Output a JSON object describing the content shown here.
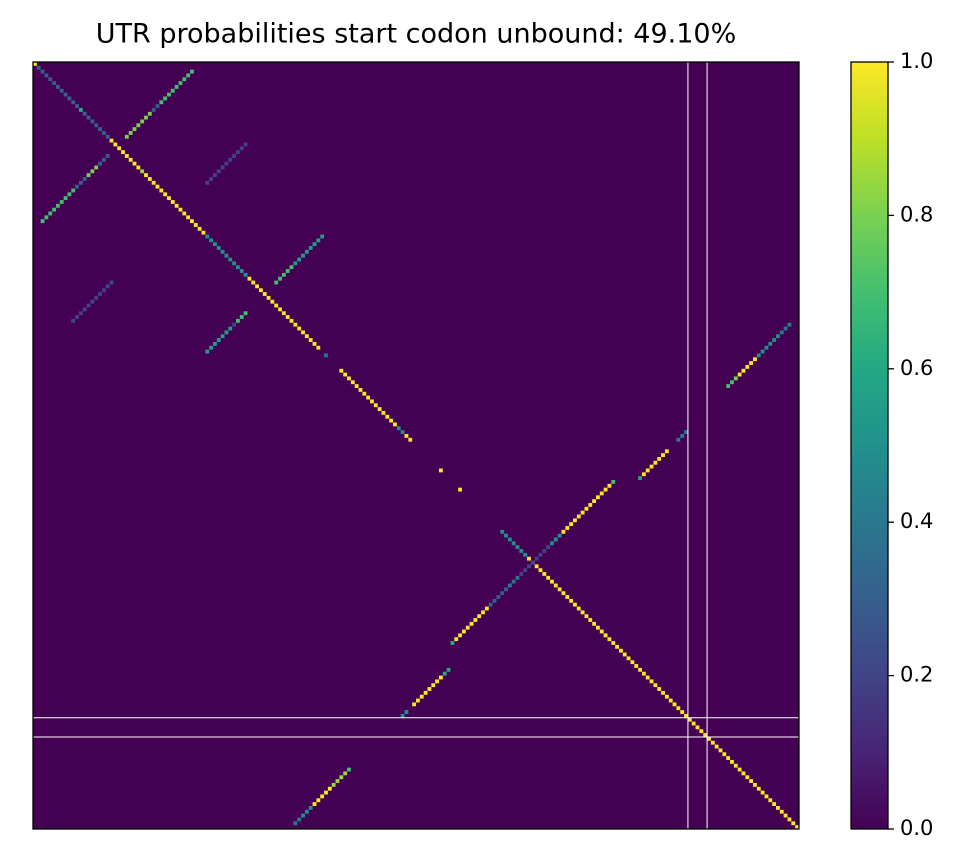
{
  "chart_data": {
    "type": "heatmap",
    "title": "UTR probabilities start codon unbound: 49.10%",
    "colormap": "viridis",
    "clim": [
      0,
      1
    ],
    "cticks": [
      {
        "value": 0,
        "label": "0.0"
      },
      0.2,
      0.4,
      0.6,
      0.8,
      {
        "value": 1,
        "label": "1.0"
      }
    ],
    "xlim": [
      0,
      200
    ],
    "ylim": [
      200,
      0
    ],
    "start_codon": [
      171,
      176
    ],
    "cells": [
      [
        0,
        0,
        1
      ],
      [
        1,
        1,
        0.3
      ],
      [
        2,
        2,
        0.3
      ],
      [
        3,
        3,
        0.3
      ],
      [
        4,
        4,
        0.3
      ],
      [
        5,
        5,
        0.3
      ],
      [
        6,
        6,
        0.3
      ],
      [
        7,
        7,
        0.3
      ],
      [
        8,
        8,
        0.3
      ],
      [
        9,
        9,
        0.3
      ],
      [
        10,
        10,
        0.3
      ],
      [
        11,
        11,
        0.3
      ],
      [
        12,
        12,
        0.6
      ],
      [
        13,
        13,
        0.3
      ],
      [
        14,
        14,
        0.3
      ],
      [
        15,
        15,
        0.3
      ],
      [
        16,
        16,
        0.3
      ],
      [
        17,
        17,
        0.3
      ],
      [
        18,
        18,
        0.3
      ],
      [
        19,
        19,
        0.3
      ],
      [
        20,
        20,
        1
      ],
      [
        21,
        21,
        1
      ],
      [
        22,
        22,
        1
      ],
      [
        23,
        23,
        1
      ],
      [
        24,
        24,
        1
      ],
      [
        25,
        25,
        1
      ],
      [
        26,
        26,
        1
      ],
      [
        27,
        27,
        1
      ],
      [
        28,
        28,
        0.85
      ],
      [
        29,
        29,
        1
      ],
      [
        30,
        30,
        1
      ],
      [
        31,
        31,
        1
      ],
      [
        32,
        32,
        1
      ],
      [
        33,
        33,
        1
      ],
      [
        34,
        34,
        1
      ],
      [
        35,
        35,
        1
      ],
      [
        36,
        36,
        1
      ],
      [
        37,
        37,
        1
      ],
      [
        38,
        38,
        1
      ],
      [
        39,
        39,
        1
      ],
      [
        40,
        40,
        1
      ],
      [
        41,
        41,
        1
      ],
      [
        42,
        42,
        1
      ],
      [
        43,
        43,
        1
      ],
      [
        44,
        44,
        1
      ],
      [
        45,
        45,
        0.5
      ],
      [
        46,
        46,
        0.5
      ],
      [
        47,
        47,
        0.5
      ],
      [
        48,
        48,
        0.5
      ],
      [
        49,
        49,
        0.5
      ],
      [
        50,
        50,
        0.5
      ],
      [
        51,
        51,
        0.5
      ],
      [
        52,
        52,
        0.5
      ],
      [
        53,
        53,
        0.5
      ],
      [
        54,
        54,
        0.5
      ],
      [
        55,
        55,
        0.5
      ],
      [
        56,
        56,
        1
      ],
      [
        57,
        57,
        1
      ],
      [
        58,
        58,
        1
      ],
      [
        59,
        59,
        1
      ],
      [
        60,
        60,
        1
      ],
      [
        61,
        61,
        1
      ],
      [
        62,
        62,
        1
      ],
      [
        63,
        63,
        1
      ],
      [
        64,
        64,
        1
      ],
      [
        65,
        65,
        1
      ],
      [
        66,
        66,
        1
      ],
      [
        67,
        67,
        1
      ],
      [
        68,
        68,
        1
      ],
      [
        69,
        69,
        1
      ],
      [
        70,
        70,
        1
      ],
      [
        71,
        71,
        1
      ],
      [
        72,
        72,
        1
      ],
      [
        73,
        73,
        1
      ],
      [
        74,
        74,
        1
      ],
      [
        76,
        76,
        0.4
      ],
      [
        80,
        80,
        1
      ],
      [
        81,
        81,
        1
      ],
      [
        82,
        82,
        1
      ],
      [
        83,
        83,
        1
      ],
      [
        84,
        84,
        1
      ],
      [
        85,
        85,
        1
      ],
      [
        86,
        86,
        1
      ],
      [
        87,
        87,
        1
      ],
      [
        88,
        88,
        1
      ],
      [
        89,
        89,
        1
      ],
      [
        90,
        90,
        1
      ],
      [
        91,
        91,
        1
      ],
      [
        92,
        92,
        1
      ],
      [
        93,
        93,
        1
      ],
      [
        94,
        94,
        1
      ],
      [
        95,
        95,
        0.5
      ],
      [
        96,
        96,
        0.5
      ],
      [
        97,
        97,
        1
      ],
      [
        98,
        98,
        1
      ],
      [
        106,
        106,
        1
      ],
      [
        111,
        111,
        1
      ],
      [
        122,
        122,
        0.5
      ],
      [
        123,
        123,
        0.5
      ],
      [
        124,
        124,
        0.5
      ],
      [
        125,
        125,
        0.5
      ],
      [
        126,
        126,
        0.5
      ],
      [
        127,
        127,
        0.5
      ],
      [
        128,
        128,
        0.5
      ],
      [
        129,
        129,
        1
      ],
      [
        130,
        130,
        1
      ],
      [
        131,
        131,
        1
      ],
      [
        132,
        132,
        1
      ],
      [
        133,
        133,
        1
      ],
      [
        134,
        134,
        1
      ],
      [
        135,
        135,
        1
      ],
      [
        136,
        136,
        1
      ],
      [
        137,
        137,
        1
      ],
      [
        138,
        138,
        1
      ],
      [
        139,
        139,
        1
      ],
      [
        140,
        140,
        1
      ],
      [
        141,
        141,
        1
      ],
      [
        142,
        142,
        1
      ],
      [
        143,
        143,
        1
      ],
      [
        144,
        144,
        1
      ],
      [
        145,
        145,
        1
      ],
      [
        146,
        146,
        1
      ],
      [
        147,
        147,
        1
      ],
      [
        148,
        148,
        1
      ],
      [
        149,
        149,
        1
      ],
      [
        150,
        150,
        1
      ],
      [
        151,
        151,
        1
      ],
      [
        152,
        152,
        1
      ],
      [
        153,
        153,
        1
      ],
      [
        154,
        154,
        1
      ],
      [
        155,
        155,
        1
      ],
      [
        156,
        156,
        1
      ],
      [
        157,
        157,
        1
      ],
      [
        158,
        158,
        1
      ],
      [
        159,
        159,
        1
      ],
      [
        160,
        160,
        1
      ],
      [
        161,
        161,
        1
      ],
      [
        162,
        162,
        1
      ],
      [
        163,
        163,
        1
      ],
      [
        164,
        164,
        1
      ],
      [
        165,
        165,
        1
      ],
      [
        166,
        166,
        1
      ],
      [
        167,
        167,
        1
      ],
      [
        168,
        168,
        1
      ],
      [
        169,
        169,
        1
      ],
      [
        170,
        170,
        1
      ],
      [
        171,
        171,
        1
      ],
      [
        172,
        172,
        1
      ],
      [
        173,
        173,
        1
      ],
      [
        174,
        174,
        1
      ],
      [
        175,
        175,
        1
      ],
      [
        176,
        176,
        1
      ],
      [
        177,
        177,
        1
      ],
      [
        178,
        178,
        1
      ],
      [
        179,
        179,
        1
      ],
      [
        180,
        180,
        1
      ],
      [
        181,
        181,
        1
      ],
      [
        182,
        182,
        1
      ],
      [
        183,
        183,
        1
      ],
      [
        184,
        184,
        1
      ],
      [
        185,
        185,
        1
      ],
      [
        186,
        186,
        1
      ],
      [
        187,
        187,
        1
      ],
      [
        188,
        188,
        1
      ],
      [
        189,
        189,
        1
      ],
      [
        190,
        190,
        1
      ],
      [
        191,
        191,
        1
      ],
      [
        192,
        192,
        1
      ],
      [
        193,
        193,
        1
      ],
      [
        194,
        194,
        1
      ],
      [
        195,
        195,
        1
      ],
      [
        196,
        196,
        1
      ],
      [
        197,
        197,
        1
      ],
      [
        198,
        198,
        1
      ],
      [
        199,
        199,
        1
      ],
      [
        41,
        2,
        0.7
      ],
      [
        40,
        3,
        0.7
      ],
      [
        39,
        4,
        0.7
      ],
      [
        38,
        5,
        0.7
      ],
      [
        37,
        6,
        0.7
      ],
      [
        36,
        7,
        0.7
      ],
      [
        35,
        8,
        0.7
      ],
      [
        34,
        9,
        0.7
      ],
      [
        33,
        10,
        0.7
      ],
      [
        32,
        11,
        0.3
      ],
      [
        31,
        12,
        0.3
      ],
      [
        30,
        13,
        0.3
      ],
      [
        29,
        14,
        0.8
      ],
      [
        28,
        15,
        0.8
      ],
      [
        27,
        16,
        0.8
      ],
      [
        26,
        17,
        0.3
      ],
      [
        25,
        18,
        0.3
      ],
      [
        24,
        19,
        0.3
      ],
      [
        19,
        24,
        0.8
      ],
      [
        18,
        25,
        0.8
      ],
      [
        17,
        26,
        0.8
      ],
      [
        16,
        27,
        0.8
      ],
      [
        15,
        28,
        0.8
      ],
      [
        14,
        29,
        0.8
      ],
      [
        13,
        30,
        0.8
      ],
      [
        12,
        31,
        0.3
      ],
      [
        11,
        32,
        0.3
      ],
      [
        10,
        33,
        0.7
      ],
      [
        9,
        34,
        0.7
      ],
      [
        8,
        35,
        0.7
      ],
      [
        7,
        36,
        0.7
      ],
      [
        6,
        37,
        0.7
      ],
      [
        5,
        38,
        0.7
      ],
      [
        4,
        39,
        0.7
      ],
      [
        3,
        40,
        0.7
      ],
      [
        2,
        41,
        0.7
      ],
      [
        75,
        45,
        0.55
      ],
      [
        74,
        46,
        0.55
      ],
      [
        73,
        47,
        0.55
      ],
      [
        72,
        48,
        0.55
      ],
      [
        71,
        49,
        0.55
      ],
      [
        70,
        50,
        0.55
      ],
      [
        69,
        51,
        0.55
      ],
      [
        68,
        52,
        0.2
      ],
      [
        67,
        53,
        0.7
      ],
      [
        66,
        54,
        0.7
      ],
      [
        65,
        55,
        0.7
      ],
      [
        57,
        63,
        0.7
      ],
      [
        56,
        64,
        0.7
      ],
      [
        55,
        65,
        0.7
      ],
      [
        54,
        66,
        0.7
      ],
      [
        53,
        67,
        0.7
      ],
      [
        52,
        68,
        0.55
      ],
      [
        51,
        69,
        0.55
      ],
      [
        50,
        70,
        0.55
      ],
      [
        49,
        71,
        0.55
      ],
      [
        48,
        72,
        0.55
      ],
      [
        47,
        73,
        0.55
      ],
      [
        46,
        74,
        0.55
      ],
      [
        45,
        75,
        0.55
      ],
      [
        170,
        96,
        0.5
      ],
      [
        169,
        97,
        0.5
      ],
      [
        167,
        99,
        1
      ],
      [
        166,
        100,
        1
      ],
      [
        165,
        101,
        1
      ],
      [
        164,
        102,
        1
      ],
      [
        163,
        103,
        1
      ],
      [
        162,
        104,
        1
      ],
      [
        161,
        105,
        1
      ],
      [
        160,
        106,
        1
      ],
      [
        159,
        107,
        0.6
      ],
      [
        158,
        108,
        0.6
      ],
      [
        151,
        109,
        0.6
      ],
      [
        150,
        110,
        1
      ],
      [
        149,
        111,
        1
      ],
      [
        148,
        112,
        1
      ],
      [
        147,
        113,
        1
      ],
      [
        146,
        114,
        1
      ],
      [
        145,
        115,
        1
      ],
      [
        144,
        116,
        1
      ],
      [
        143,
        117,
        1
      ],
      [
        142,
        118,
        1
      ],
      [
        141,
        119,
        0.3
      ],
      [
        140,
        120,
        0.3
      ],
      [
        139,
        121,
        0.3
      ],
      [
        138,
        122,
        0.3
      ],
      [
        137,
        123,
        0.3
      ],
      [
        136,
        124,
        0.4
      ],
      [
        135,
        125,
        0.4
      ],
      [
        134,
        126,
        0.4
      ],
      [
        133,
        127,
        0.2
      ],
      [
        132,
        128,
        0.2
      ],
      [
        131,
        129,
        0.2
      ],
      [
        130,
        130,
        0.2
      ],
      [
        129,
        131,
        0.2
      ],
      [
        128,
        132,
        0.2
      ],
      [
        127,
        133,
        0.2
      ],
      [
        126,
        134,
        0.2
      ],
      [
        125,
        135,
        0.5
      ],
      [
        124,
        136,
        0.5
      ],
      [
        123,
        137,
        0.5
      ],
      [
        122,
        138,
        1
      ],
      [
        121,
        139,
        1
      ],
      [
        120,
        140,
        1
      ],
      [
        119,
        141,
        1
      ],
      [
        118,
        142,
        1
      ],
      [
        117,
        143,
        1
      ],
      [
        116,
        144,
        1
      ],
      [
        115,
        145,
        1
      ],
      [
        114,
        146,
        1
      ],
      [
        113,
        147,
        1
      ],
      [
        112,
        148,
        1
      ],
      [
        111,
        149,
        1
      ],
      [
        110,
        150,
        1
      ],
      [
        109,
        151,
        0.7
      ],
      [
        108,
        158,
        0.6
      ],
      [
        107,
        159,
        1
      ],
      [
        106,
        160,
        1
      ],
      [
        105,
        161,
        1
      ],
      [
        104,
        162,
        1
      ],
      [
        103,
        163,
        1
      ],
      [
        102,
        164,
        1
      ],
      [
        101,
        165,
        1
      ],
      [
        98,
        168,
        0.4
      ],
      [
        97,
        169,
        0.4
      ],
      [
        96,
        170,
        0.4
      ],
      [
        84,
        181,
        0.7
      ],
      [
        83,
        182,
        0.7
      ],
      [
        82,
        183,
        0.8
      ],
      [
        81,
        184,
        1
      ],
      [
        80,
        185,
        1
      ],
      [
        79,
        186,
        1
      ],
      [
        78,
        187,
        1
      ],
      [
        77,
        188,
        1
      ],
      [
        76,
        189,
        0.5
      ],
      [
        75,
        190,
        0.5
      ],
      [
        74,
        191,
        0.5
      ],
      [
        73,
        192,
        0.5
      ],
      [
        72,
        193,
        0.5
      ],
      [
        71,
        194,
        0.5
      ],
      [
        70,
        195,
        0.4
      ],
      [
        69,
        196,
        0.4
      ],
      [
        68,
        197,
        0.4
      ],
      [
        198,
        68,
        0.4
      ],
      [
        197,
        69,
        0.4
      ],
      [
        196,
        70,
        0.5
      ],
      [
        195,
        71,
        0.5
      ],
      [
        194,
        72,
        0.5
      ],
      [
        193,
        73,
        1
      ],
      [
        192,
        74,
        1
      ],
      [
        191,
        75,
        1
      ],
      [
        190,
        76,
        1
      ],
      [
        189,
        77,
        1
      ],
      [
        188,
        78,
        0.85
      ],
      [
        187,
        79,
        0.85
      ],
      [
        186,
        80,
        0.85
      ],
      [
        185,
        81,
        0.85
      ],
      [
        184,
        82,
        0.7
      ],
      [
        67,
        10,
        0.2
      ],
      [
        66,
        11,
        0.2
      ],
      [
        65,
        12,
        0.2
      ],
      [
        64,
        13,
        0.2
      ],
      [
        63,
        14,
        0.2
      ],
      [
        62,
        15,
        0.2
      ],
      [
        61,
        16,
        0.2
      ],
      [
        60,
        17,
        0.2
      ],
      [
        59,
        18,
        0.2
      ],
      [
        58,
        19,
        0.2
      ],
      [
        57,
        20,
        0.2
      ],
      [
        31,
        45,
        0.2
      ],
      [
        30,
        46,
        0.2
      ],
      [
        29,
        47,
        0.2
      ],
      [
        28,
        48,
        0.2
      ],
      [
        27,
        49,
        0.2
      ],
      [
        26,
        50,
        0.2
      ],
      [
        25,
        51,
        0.2
      ],
      [
        24,
        52,
        0.2
      ],
      [
        23,
        53,
        0.2
      ],
      [
        22,
        54,
        0.2
      ],
      [
        21,
        55,
        0.2
      ]
    ]
  }
}
